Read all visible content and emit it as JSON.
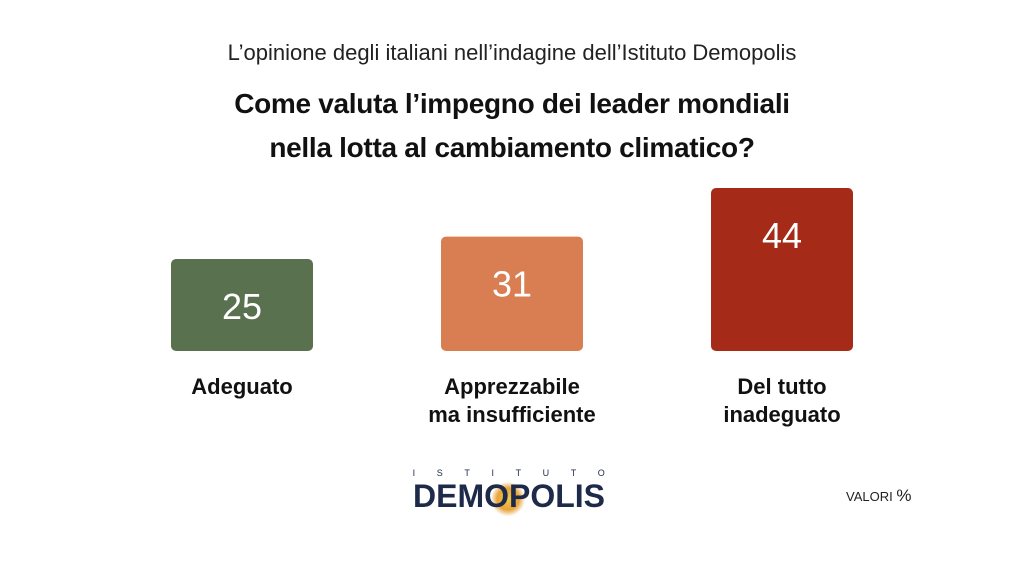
{
  "header": {
    "subtitle": "L’opinione degli italiani nell’indagine dell’Istituto Demopolis",
    "title_line1": "Come valuta l’impegno dei leader mondiali",
    "title_line2": "nella lotta al cambiamento climatico?"
  },
  "chart_data": {
    "type": "bar",
    "categories": [
      [
        "Adeguato"
      ],
      [
        "Apprezzabile",
        "ma insufficiente"
      ],
      [
        "Del tutto",
        "inadeguato"
      ]
    ],
    "values": [
      25,
      31,
      44
    ],
    "colors": [
      "#5a7150",
      "#d97e52",
      "#a52b18"
    ],
    "unit": "%",
    "data_labels": [
      "25",
      "31",
      "44"
    ]
  },
  "logo": {
    "top_text": "ISTITUTO",
    "main_text": "DEMOPOLIS",
    "accent_color": "#e7a43a",
    "text_color": "#1d2a4a"
  },
  "footer": {
    "valori_label": "VALORI",
    "valori_unit": "%"
  }
}
